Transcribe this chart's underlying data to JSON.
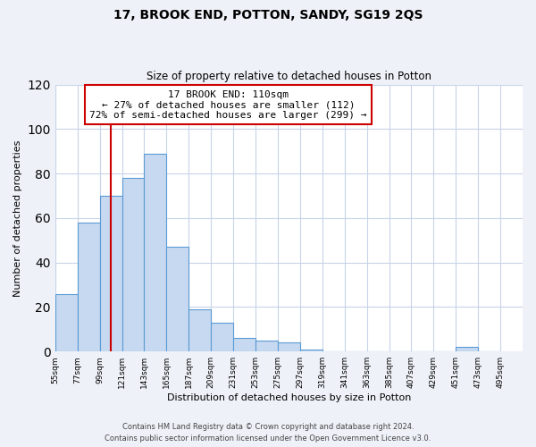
{
  "title": "17, BROOK END, POTTON, SANDY, SG19 2QS",
  "subtitle": "Size of property relative to detached houses in Potton",
  "xlabel": "Distribution of detached houses by size in Potton",
  "ylabel": "Number of detached properties",
  "bar_heights": [
    26,
    58,
    70,
    78,
    89,
    47,
    19,
    13,
    6,
    5,
    4,
    1,
    0,
    0,
    0,
    0,
    0,
    0,
    2,
    0
  ],
  "bin_labels": [
    "55sqm",
    "77sqm",
    "99sqm",
    "121sqm",
    "143sqm",
    "165sqm",
    "187sqm",
    "209sqm",
    "231sqm",
    "253sqm",
    "275sqm",
    "297sqm",
    "319sqm",
    "341sqm",
    "363sqm",
    "385sqm",
    "407sqm",
    "429sqm",
    "451sqm",
    "473sqm",
    "495sqm"
  ],
  "bin_edges": [
    55,
    77,
    99,
    121,
    143,
    165,
    187,
    209,
    231,
    253,
    275,
    297,
    319,
    341,
    363,
    385,
    407,
    429,
    451,
    473,
    495
  ],
  "bar_color": "#c6d9f0",
  "bar_edge_color": "#5b9bd5",
  "property_line_x": 110,
  "property_line_color": "#cc0000",
  "ylim": [
    0,
    120
  ],
  "yticks": [
    0,
    20,
    40,
    60,
    80,
    100,
    120
  ],
  "annotation_title": "17 BROOK END: 110sqm",
  "annotation_line1": "← 27% of detached houses are smaller (112)",
  "annotation_line2": "72% of semi-detached houses are larger (299) →",
  "footer_line1": "Contains HM Land Registry data © Crown copyright and database right 2024.",
  "footer_line2": "Contains public sector information licensed under the Open Government Licence v3.0.",
  "background_color": "#eef2f8",
  "plot_bg_color": "#ffffff",
  "grid_color": "#c8d4e8"
}
